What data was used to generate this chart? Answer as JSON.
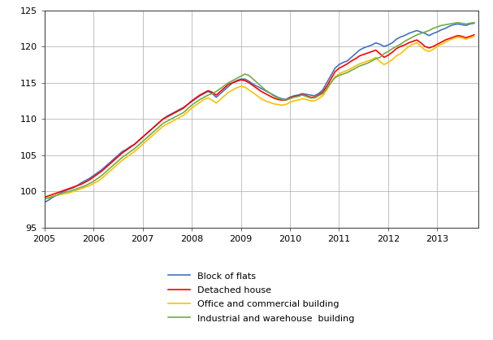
{
  "title": "",
  "ylabel": "",
  "xlabel": "",
  "ylim": [
    95,
    125
  ],
  "yticks": [
    95,
    100,
    105,
    110,
    115,
    120,
    125
  ],
  "colors": {
    "block_of_flats": "#4472C4",
    "detached_house": "#FF0000",
    "office_commercial": "#FFC000",
    "industrial_warehouse": "#70AD47"
  },
  "legend_labels": [
    "Block of flats",
    "Detached house",
    "Office and commercial building",
    "Industrial and warehouse  building"
  ],
  "background_color": "#FFFFFF",
  "grid_color": "#AAAAAA",
  "line_width": 1.2,
  "block_of_flats": [
    98.5,
    98.8,
    99.2,
    99.5,
    99.8,
    100.1,
    100.3,
    100.5,
    100.8,
    101.2,
    101.5,
    101.8,
    102.2,
    102.6,
    103.0,
    103.5,
    104.0,
    104.5,
    105.0,
    105.5,
    105.8,
    106.2,
    106.5,
    107.0,
    107.5,
    108.0,
    108.5,
    109.0,
    109.5,
    110.0,
    110.4,
    110.7,
    111.0,
    111.3,
    111.6,
    112.0,
    112.4,
    112.8,
    113.2,
    113.5,
    113.8,
    113.5,
    113.0,
    113.5,
    114.0,
    114.5,
    115.0,
    115.3,
    115.5,
    115.5,
    115.2,
    114.8,
    114.5,
    114.2,
    113.9,
    113.6,
    113.3,
    113.0,
    112.8,
    112.7,
    113.0,
    113.2,
    113.3,
    113.5,
    113.4,
    113.3,
    113.2,
    113.5,
    114.0,
    115.0,
    116.0,
    117.0,
    117.5,
    117.8,
    118.0,
    118.5,
    119.0,
    119.5,
    119.8,
    120.0,
    120.2,
    120.5,
    120.3,
    120.0,
    120.2,
    120.5,
    121.0,
    121.3,
    121.5,
    121.8,
    122.0,
    122.2,
    122.0,
    121.8,
    121.5,
    121.8,
    122.0,
    122.3,
    122.5,
    122.8,
    123.0,
    123.1,
    123.0,
    122.9,
    123.1,
    123.2
  ],
  "detached_house": [
    99.2,
    99.4,
    99.6,
    99.8,
    100.0,
    100.2,
    100.4,
    100.6,
    100.8,
    101.0,
    101.3,
    101.6,
    102.0,
    102.4,
    102.8,
    103.3,
    103.8,
    104.3,
    104.8,
    105.3,
    105.7,
    106.1,
    106.5,
    107.0,
    107.5,
    108.0,
    108.5,
    109.0,
    109.5,
    110.0,
    110.3,
    110.6,
    110.9,
    111.2,
    111.5,
    112.0,
    112.5,
    112.9,
    113.3,
    113.6,
    113.9,
    113.7,
    113.3,
    113.8,
    114.3,
    114.8,
    115.0,
    115.2,
    115.4,
    115.3,
    115.0,
    114.6,
    114.2,
    113.8,
    113.5,
    113.2,
    112.9,
    112.7,
    112.6,
    112.6,
    112.9,
    113.1,
    113.2,
    113.4,
    113.2,
    113.0,
    113.0,
    113.3,
    113.7,
    114.5,
    115.5,
    116.5,
    117.0,
    117.3,
    117.6,
    118.0,
    118.3,
    118.7,
    118.9,
    119.1,
    119.3,
    119.5,
    119.0,
    118.5,
    118.8,
    119.2,
    119.7,
    120.0,
    120.2,
    120.5,
    120.7,
    120.9,
    120.5,
    120.0,
    119.8,
    120.0,
    120.3,
    120.6,
    120.9,
    121.1,
    121.3,
    121.5,
    121.4,
    121.2,
    121.4,
    121.6
  ],
  "office_commercial": [
    99.0,
    99.2,
    99.4,
    99.5,
    99.6,
    99.7,
    99.8,
    100.0,
    100.2,
    100.4,
    100.6,
    100.8,
    101.1,
    101.4,
    101.8,
    102.3,
    102.8,
    103.3,
    103.8,
    104.3,
    104.7,
    105.1,
    105.5,
    106.0,
    106.5,
    107.0,
    107.5,
    108.0,
    108.5,
    109.0,
    109.3,
    109.6,
    109.9,
    110.2,
    110.5,
    111.0,
    111.5,
    111.9,
    112.3,
    112.7,
    112.9,
    112.6,
    112.2,
    112.7,
    113.2,
    113.7,
    114.0,
    114.3,
    114.5,
    114.4,
    114.0,
    113.6,
    113.2,
    112.8,
    112.5,
    112.3,
    112.1,
    112.0,
    111.9,
    112.0,
    112.3,
    112.5,
    112.6,
    112.8,
    112.7,
    112.5,
    112.5,
    112.8,
    113.2,
    114.0,
    115.0,
    115.8,
    116.2,
    116.5,
    116.7,
    117.0,
    117.3,
    117.6,
    117.8,
    118.0,
    118.2,
    118.5,
    117.9,
    117.5,
    117.8,
    118.2,
    118.7,
    119.0,
    119.5,
    120.0,
    120.3,
    120.5,
    120.0,
    119.5,
    119.3,
    119.6,
    120.0,
    120.3,
    120.6,
    120.9,
    121.1,
    121.3,
    121.2,
    121.0,
    121.2,
    121.4
  ],
  "industrial_warehouse": [
    99.0,
    99.1,
    99.3,
    99.5,
    99.7,
    99.9,
    100.0,
    100.2,
    100.4,
    100.6,
    100.8,
    101.1,
    101.4,
    101.8,
    102.2,
    102.7,
    103.2,
    103.7,
    104.2,
    104.7,
    105.1,
    105.5,
    105.9,
    106.4,
    106.9,
    107.4,
    107.9,
    108.4,
    108.9,
    109.4,
    109.7,
    110.0,
    110.3,
    110.6,
    110.9,
    111.4,
    111.9,
    112.3,
    112.7,
    113.0,
    113.3,
    113.5,
    113.8,
    114.2,
    114.6,
    115.0,
    115.3,
    115.6,
    115.9,
    116.2,
    116.0,
    115.5,
    115.0,
    114.5,
    114.0,
    113.6,
    113.2,
    112.9,
    112.7,
    112.6,
    112.8,
    113.0,
    113.1,
    113.3,
    113.1,
    112.9,
    112.9,
    113.2,
    113.5,
    114.2,
    115.0,
    115.7,
    116.0,
    116.2,
    116.4,
    116.7,
    117.0,
    117.3,
    117.5,
    117.7,
    118.0,
    118.3,
    118.5,
    119.0,
    119.3,
    119.7,
    120.0,
    120.3,
    120.7,
    121.0,
    121.3,
    121.6,
    121.8,
    122.0,
    122.2,
    122.5,
    122.7,
    122.9,
    123.0,
    123.1,
    123.2,
    123.3,
    123.2,
    123.1,
    123.2,
    123.3
  ],
  "n_points": 106,
  "x_start_year": 2005,
  "xtick_years": [
    2005,
    2006,
    2007,
    2008,
    2009,
    2010,
    2011,
    2012,
    2013
  ]
}
